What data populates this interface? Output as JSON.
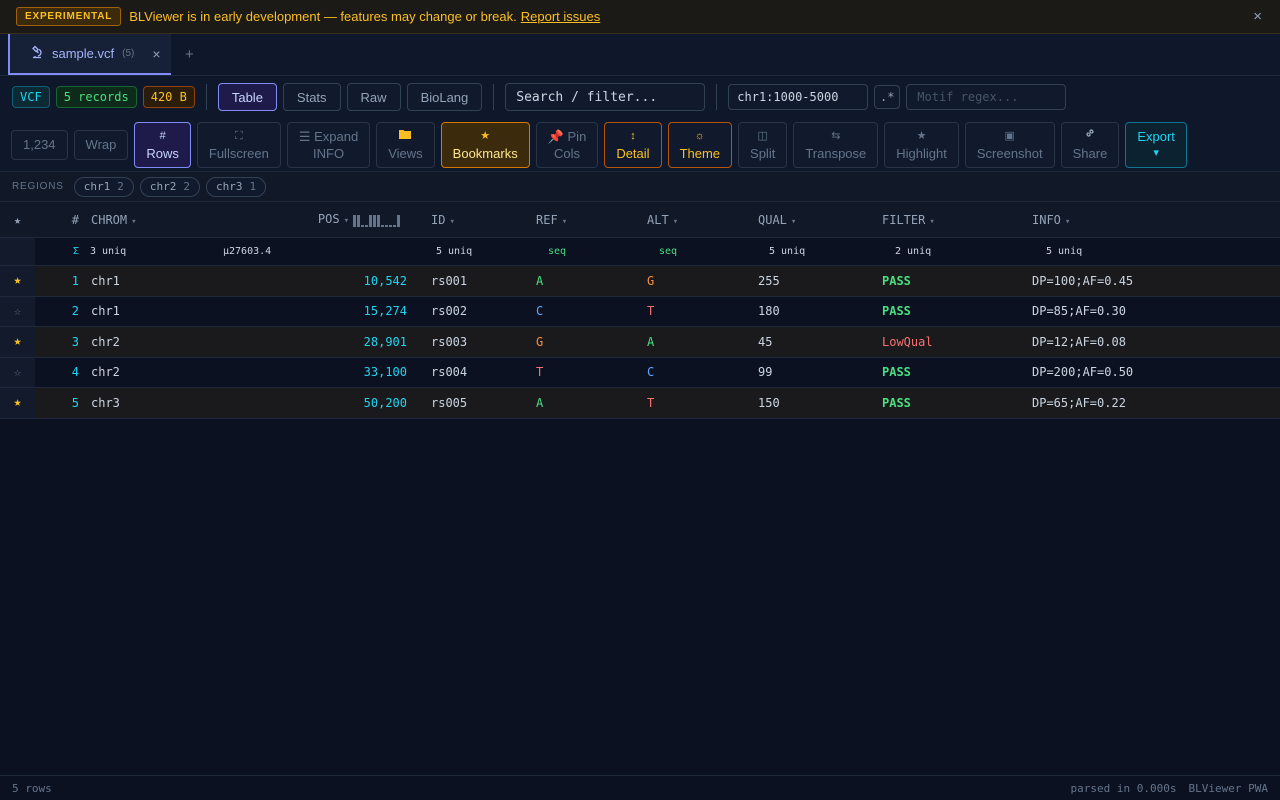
{
  "banner": {
    "badge": "EXPERIMENTAL",
    "message": "BLViewer is in early development — features may change or break.",
    "link": "Report issues",
    "close": "×"
  },
  "tabs": [
    {
      "icon": "microscope-icon",
      "label": "sample.vcf",
      "count": "(5)",
      "close": "×"
    }
  ],
  "tab_add": "+",
  "toolbar1": {
    "format": "VCF",
    "records": "5 records",
    "size": "420 B",
    "modes": [
      "Table",
      "Stats",
      "Raw",
      "BioLang"
    ],
    "active_mode": "Table",
    "search_placeholder": "Search / filter...",
    "region_value": "chr1:1000-5000",
    "regex_label": ".*",
    "motif_placeholder": "Motif regex..."
  },
  "toolbar2": {
    "number_format": "1,234",
    "wrap": "Wrap",
    "rows_icon": "#",
    "rows": "Rows",
    "fullscreen_icon": "⛶",
    "fullscreen": "Fullscreen",
    "expand_info_line1": "☰ Expand",
    "expand_info_line2": "INFO",
    "views": "Views",
    "bookmarks_icon": "★",
    "bookmarks": "Bookmarks",
    "pin_line1": "Pin",
    "pin_line2": "Cols",
    "detail_icon": "↕",
    "detail": "Detail",
    "theme_icon": "☼",
    "theme": "Theme",
    "split_icon": "◫",
    "split": "Split",
    "transpose_icon": "⇆",
    "transpose": "Transpose",
    "highlight_icon": "★",
    "highlight": "Highlight",
    "screenshot_icon": "▣",
    "screenshot": "Screenshot",
    "share_icon": "🔗",
    "share": "Share",
    "export": "Export",
    "export_caret": "▾"
  },
  "regions": {
    "label": "REGIONS",
    "chips": [
      {
        "name": "chr1",
        "count": "2"
      },
      {
        "name": "chr2",
        "count": "2"
      },
      {
        "name": "chr3",
        "count": "1"
      }
    ]
  },
  "table": {
    "headers": {
      "star": "★",
      "num": "#",
      "chrom": "CHROM",
      "pos": "POS",
      "id": "ID",
      "ref": "REF",
      "alt": "ALT",
      "qual": "QUAL",
      "filter": "FILTER",
      "info": "INFO"
    },
    "sort_arrow": "▾",
    "summary": {
      "sigma": "Σ",
      "chrom": "3 uniq",
      "pos": "μ27603.4",
      "id": "5 uniq",
      "ref": "seq",
      "alt": "seq",
      "qual": "5 uniq",
      "filter": "2 uniq",
      "info": "5 uniq"
    },
    "rows": [
      {
        "star": "★",
        "num": "1",
        "chrom": "chr1",
        "pos": "10,542",
        "id": "rs001",
        "ref": "A",
        "alt": "G",
        "qual": "255",
        "filter": "PASS",
        "info": "DP=100;AF=0.45"
      },
      {
        "star": "☆",
        "num": "2",
        "chrom": "chr1",
        "pos": "15,274",
        "id": "rs002",
        "ref": "C",
        "alt": "T",
        "qual": "180",
        "filter": "PASS",
        "info": "DP=85;AF=0.30"
      },
      {
        "star": "★",
        "num": "3",
        "chrom": "chr2",
        "pos": "28,901",
        "id": "rs003",
        "ref": "G",
        "alt": "A",
        "qual": "45",
        "filter": "LowQual",
        "info": "DP=12;AF=0.08"
      },
      {
        "star": "☆",
        "num": "4",
        "chrom": "chr2",
        "pos": "33,100",
        "id": "rs004",
        "ref": "T",
        "alt": "C",
        "qual": "99",
        "filter": "PASS",
        "info": "DP=200;AF=0.50"
      },
      {
        "star": "★",
        "num": "5",
        "chrom": "chr3",
        "pos": "50,200",
        "id": "rs005",
        "ref": "A",
        "alt": "T",
        "qual": "150",
        "filter": "PASS",
        "info": "DP=65;AF=0.22"
      }
    ]
  },
  "status": {
    "rows": "5 rows",
    "parsed": "parsed in 0.000s",
    "app": "BLViewer PWA"
  },
  "colors": {
    "accent": "#818cf8",
    "star": "#fbbf24",
    "pass": "#4ade80",
    "fail": "#f87171",
    "pos": "#22d3ee"
  }
}
